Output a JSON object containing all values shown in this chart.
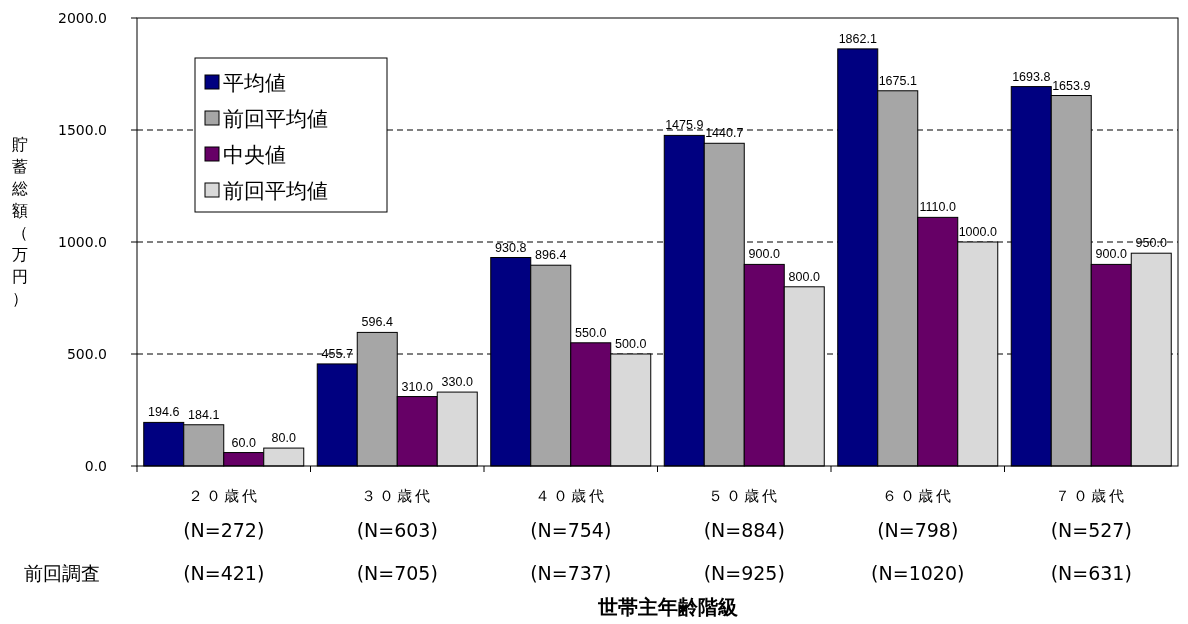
{
  "chart_data": {
    "type": "bar",
    "xlabel": "世帯主年齢階級",
    "ylabel": "貯蓄総額（万円）",
    "categories": [
      "２０歳代\n(N=272)\n(N=421)",
      "３０歳代\n(N=603)\n(N=705)",
      "４０歳代\n(N=754)\n(N=737)",
      "５０歳代\n(N=884)\n(N=925)",
      "６０歳代\n(N=798)\n(N=1020)",
      "７０歳代\n(N=527)\n(N=631)"
    ],
    "series": [
      {
        "name": "平均値",
        "color": "#000080",
        "values": [
          194.6,
          455.7,
          930.8,
          1475.9,
          1862.1,
          1693.8
        ],
        "value_labels": [
          "194.6",
          "455.7",
          "930.8",
          "1475.9",
          "1862.1",
          "1693.8"
        ]
      },
      {
        "name": "前回平均値",
        "color": "#a6a6a6",
        "values": [
          184.1,
          596.4,
          896.4,
          1440.7,
          1675.1,
          1653.9
        ],
        "value_labels": [
          "184.1",
          "596.4",
          "896.4",
          "1440.7",
          "1675.1",
          "1653.9"
        ]
      },
      {
        "name": "中央値",
        "color": "#660066",
        "values": [
          60.0,
          310.0,
          550.0,
          900.0,
          1110.0,
          900.0
        ],
        "value_labels": [
          "60.0",
          "310.0",
          "550.0",
          "900.0",
          "1110.0",
          "900.0"
        ]
      },
      {
        "name": "前回平均値",
        "color": "#d9d9d9",
        "values": [
          80.0,
          330.0,
          500.0,
          800.0,
          1000.0,
          950.0
        ],
        "value_labels": [
          "80.0",
          "330.0",
          "500.0",
          "800.0",
          "1000.0",
          "950.0"
        ]
      }
    ],
    "ylim": [
      0,
      2000
    ],
    "yticks": [
      {
        "value": 0,
        "label": "0.0"
      },
      {
        "value": 500,
        "label": "500.0"
      },
      {
        "value": 1000,
        "label": "1000.0"
      },
      {
        "value": 1500,
        "label": "1500.0"
      },
      {
        "value": 2000,
        "label": "2000.0"
      }
    ],
    "grid": "y",
    "legend": "top left",
    "annotations": [
      "前回調査"
    ]
  }
}
